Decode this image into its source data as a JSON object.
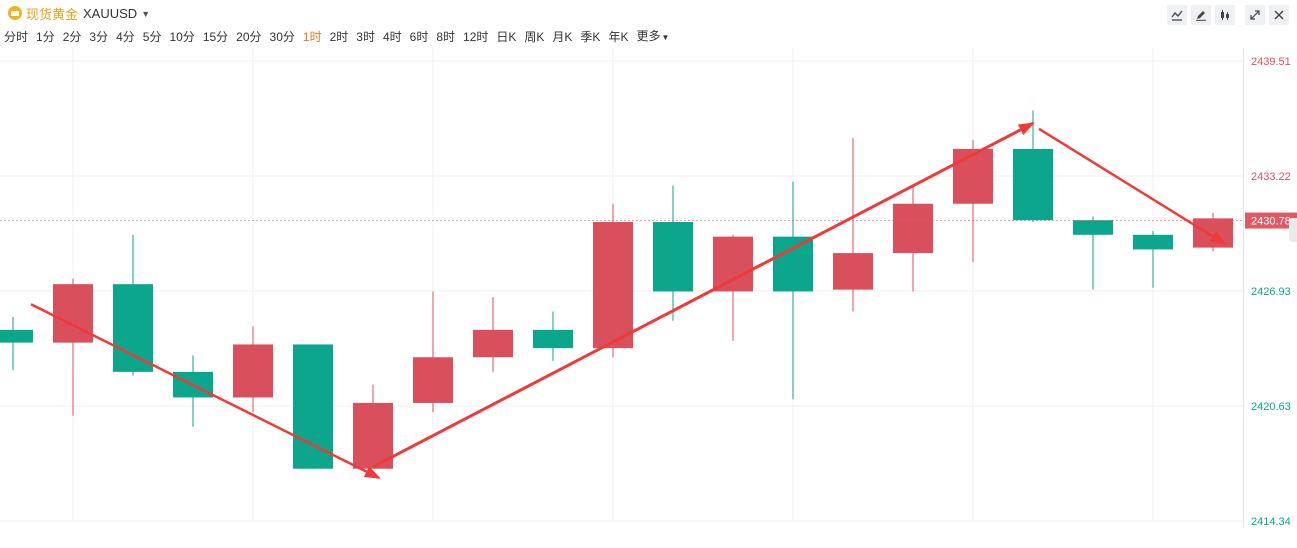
{
  "header": {
    "title": "现货黄金",
    "symbol": "XAUUSD",
    "tools": [
      "line-tool-icon",
      "pen-tool-icon",
      "candle-settings-icon"
    ],
    "window_controls": [
      "expand-icon",
      "close-icon"
    ]
  },
  "periods": {
    "items": [
      "分时",
      "1分",
      "2分",
      "3分",
      "4分",
      "5分",
      "10分",
      "15分",
      "20分",
      "30分",
      "1时",
      "2时",
      "3时",
      "4时",
      "6时",
      "8时",
      "12时",
      "日K",
      "周K",
      "月K",
      "季K",
      "年K",
      "更多"
    ],
    "active": "1时"
  },
  "colors": {
    "up": "#d9505c",
    "down": "#0ba68b",
    "arrow": "#f03a3a",
    "current_price": "#e05a66"
  },
  "chart_data": {
    "type": "candlestick",
    "title": "",
    "xlabel": "",
    "ylabel": "",
    "y_ticks": [
      "2439.51",
      "2433.22",
      "2426.93",
      "2420.63",
      "2414.34"
    ],
    "ylim": [
      2414.34,
      2439.51
    ],
    "current_price": "2430.78",
    "grid": true,
    "candles": [
      {
        "open": 2424.8,
        "close": 2424.1,
        "high": 2425.5,
        "low": 2422.6
      },
      {
        "open": 2424.1,
        "close": 2427.3,
        "high": 2427.6,
        "low": 2420.1
      },
      {
        "open": 2427.3,
        "close": 2422.5,
        "high": 2430.0,
        "low": 2422.3
      },
      {
        "open": 2422.5,
        "close": 2421.1,
        "high": 2423.4,
        "low": 2419.5
      },
      {
        "open": 2421.1,
        "close": 2424.0,
        "high": 2425.0,
        "low": 2420.3
      },
      {
        "open": 2424.0,
        "close": 2417.2,
        "high": 2424.0,
        "low": 2417.2
      },
      {
        "open": 2417.2,
        "close": 2420.8,
        "high": 2421.8,
        "low": 2417.2
      },
      {
        "open": 2420.8,
        "close": 2423.3,
        "high": 2426.9,
        "low": 2420.3
      },
      {
        "open": 2423.3,
        "close": 2424.8,
        "high": 2426.6,
        "low": 2422.5
      },
      {
        "open": 2424.8,
        "close": 2423.8,
        "high": 2425.8,
        "low": 2423.1
      },
      {
        "open": 2423.8,
        "close": 2430.7,
        "high": 2431.7,
        "low": 2423.3
      },
      {
        "open": 2430.7,
        "close": 2426.9,
        "high": 2432.7,
        "low": 2425.3
      },
      {
        "open": 2426.9,
        "close": 2429.9,
        "high": 2430.0,
        "low": 2424.2
      },
      {
        "open": 2429.9,
        "close": 2426.9,
        "high": 2432.9,
        "low": 2421.0
      },
      {
        "open": 2427.0,
        "close": 2429.0,
        "high": 2435.3,
        "low": 2425.8
      },
      {
        "open": 2429.0,
        "close": 2431.7,
        "high": 2432.6,
        "low": 2426.9
      },
      {
        "open": 2431.7,
        "close": 2434.7,
        "high": 2435.2,
        "low": 2428.5
      },
      {
        "open": 2434.7,
        "close": 2430.8,
        "high": 2436.8,
        "low": 2430.7
      },
      {
        "open": 2430.8,
        "close": 2430.0,
        "high": 2431.0,
        "low": 2427.0
      },
      {
        "open": 2430.0,
        "close": 2429.2,
        "high": 2430.2,
        "low": 2427.1
      },
      {
        "open": 2429.3,
        "close": 2430.9,
        "high": 2431.2,
        "low": 2429.1
      }
    ],
    "annotations": [
      {
        "type": "arrow",
        "from_candle": 0.3,
        "from_price": 2426.2,
        "to_candle": 6.1,
        "to_price": 2416.7
      },
      {
        "type": "arrow",
        "from_candle": 6.0,
        "from_price": 2417.3,
        "to_candle": 17.0,
        "to_price": 2436.1
      },
      {
        "type": "arrow",
        "from_candle": 17.1,
        "from_price": 2435.8,
        "to_candle": 20.2,
        "to_price": 2429.5
      }
    ]
  }
}
